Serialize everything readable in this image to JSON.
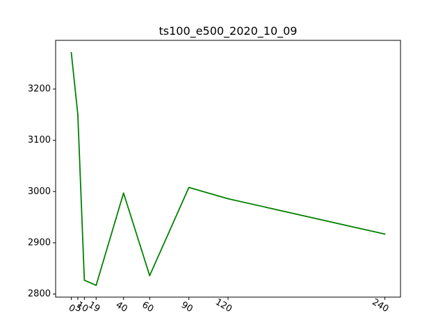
{
  "chart_data": {
    "type": "line",
    "title": "ts100_e500_2020_10_09",
    "xlabel": "",
    "ylabel": "",
    "x": [
      0,
      5,
      10,
      19,
      40,
      60,
      90,
      120,
      240
    ],
    "series": [
      {
        "values": [
          3271,
          3150,
          2827,
          2817,
          2997,
          2836,
          3008,
          2986,
          2917
        ],
        "color": "#008000"
      }
    ],
    "xticks": [
      0,
      5,
      10,
      19,
      40,
      60,
      90,
      120,
      240
    ],
    "xtick_labels": [
      "0",
      "5",
      "10",
      "19",
      "40",
      "60",
      "90",
      "120",
      "240"
    ],
    "xtick_rotation_deg": 30,
    "yticks": [
      2800,
      2900,
      3000,
      3100,
      3200
    ],
    "ytick_labels": [
      "2800",
      "2900",
      "3000",
      "3100",
      "3200"
    ],
    "xlim": [
      -12,
      252
    ],
    "ylim": [
      2794,
      3295
    ],
    "grid": false,
    "legend": "none"
  }
}
